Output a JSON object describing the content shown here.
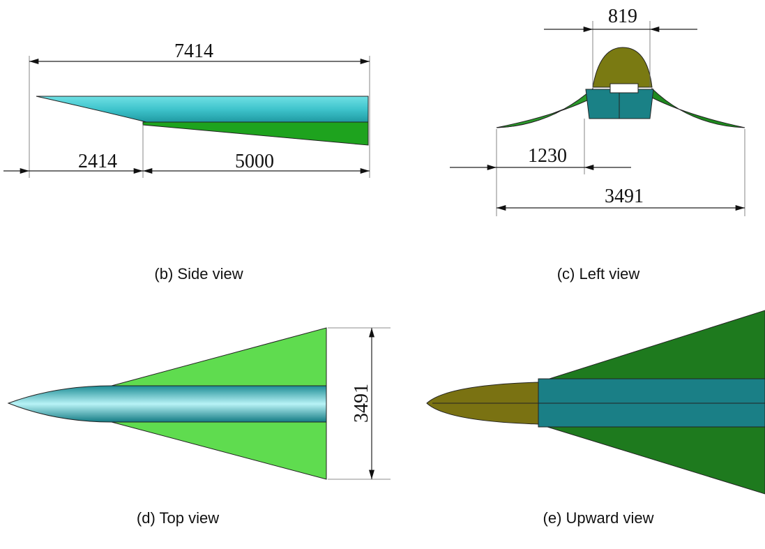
{
  "panels": [
    {
      "caption": "(b) Side view",
      "dimensions": [
        7414,
        2414,
        5000
      ]
    },
    {
      "caption": "(c) Left view",
      "dimensions": [
        819,
        1230,
        3491
      ]
    },
    {
      "caption": "(d) Top view",
      "dimensions": [
        3491
      ]
    },
    {
      "caption": "(e) Upward view"
    }
  ]
}
